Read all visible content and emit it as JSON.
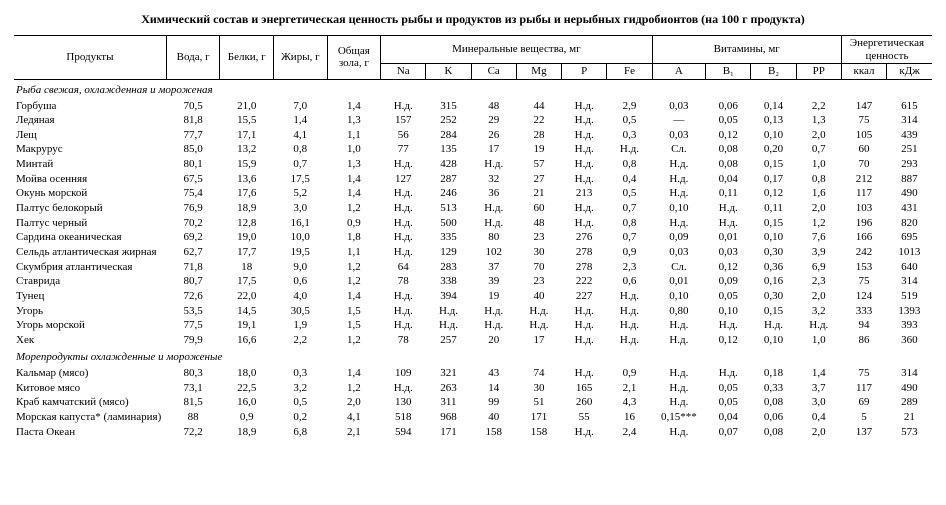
{
  "title": "Химический состав и энергетическая ценность рыбы и продуктов из рыбы и нерыбных гидробионтов (на 100 г продукта)",
  "header": {
    "products": "Продукты",
    "water": "Вода, г",
    "protein": "Белки, г",
    "fat": "Жиры, г",
    "ash": "Общая зола, г",
    "minerals_group": "Минеральные вещества, мг",
    "vitamins_group": "Витамины, мг",
    "energy_group": "Энергетическая ценность",
    "Na": "Na",
    "K": "K",
    "Ca": "Ca",
    "Mg": "Mg",
    "P": "P",
    "Fe": "Fe",
    "A": "A",
    "B1": "B₁",
    "B2": "B₂",
    "PP": "PP",
    "kcal": "ккал",
    "kJ": "кДж"
  },
  "sections": [
    {
      "title": "Рыба свежая, охлажденная и мороженая",
      "rows": [
        {
          "name": "Горбуша",
          "water": "70,5",
          "protein": "21,0",
          "fat": "7,0",
          "ash": "1,4",
          "Na": "Н.д.",
          "K": "315",
          "Ca": "48",
          "Mg": "44",
          "P": "Н.д.",
          "Fe": "2,9",
          "A": "0,03",
          "B1": "0,06",
          "B2": "0,14",
          "PP": "2,2",
          "kcal": "147",
          "kJ": "615"
        },
        {
          "name": "Ледяная",
          "water": "81,8",
          "protein": "15,5",
          "fat": "1,4",
          "ash": "1,3",
          "Na": "157",
          "K": "252",
          "Ca": "29",
          "Mg": "22",
          "P": "Н.д.",
          "Fe": "0,5",
          "A": "—",
          "B1": "0,05",
          "B2": "0,13",
          "PP": "1,3",
          "kcal": "75",
          "kJ": "314"
        },
        {
          "name": "Лещ",
          "water": "77,7",
          "protein": "17,1",
          "fat": "4,1",
          "ash": "1,1",
          "Na": "56",
          "K": "284",
          "Ca": "26",
          "Mg": "28",
          "P": "Н.д.",
          "Fe": "0,3",
          "A": "0,03",
          "B1": "0,12",
          "B2": "0,10",
          "PP": "2,0",
          "kcal": "105",
          "kJ": "439"
        },
        {
          "name": "Макрурус",
          "water": "85,0",
          "protein": "13,2",
          "fat": "0,8",
          "ash": "1,0",
          "Na": "77",
          "K": "135",
          "Ca": "17",
          "Mg": "19",
          "P": "Н.д.",
          "Fe": "Н.д.",
          "A": "Сл.",
          "B1": "0,08",
          "B2": "0,20",
          "PP": "0,7",
          "kcal": "60",
          "kJ": "251"
        },
        {
          "name": "Минтай",
          "water": "80,1",
          "protein": "15,9",
          "fat": "0,7",
          "ash": "1,3",
          "Na": "Н.д.",
          "K": "428",
          "Ca": "Н.д.",
          "Mg": "57",
          "P": "Н.д.",
          "Fe": "0,8",
          "A": "Н.д.",
          "B1": "0,08",
          "B2": "0,15",
          "PP": "1,0",
          "kcal": "70",
          "kJ": "293"
        },
        {
          "name": "Мойва осенняя",
          "water": "67,5",
          "protein": "13,6",
          "fat": "17,5",
          "ash": "1,4",
          "Na": "127",
          "K": "287",
          "Ca": "32",
          "Mg": "27",
          "P": "Н.д.",
          "Fe": "0,4",
          "A": "Н.д.",
          "B1": "0,04",
          "B2": "0,17",
          "PP": "0,8",
          "kcal": "212",
          "kJ": "887"
        },
        {
          "name": "Окунь морской",
          "water": "75,4",
          "protein": "17,6",
          "fat": "5,2",
          "ash": "1,4",
          "Na": "Н.д.",
          "K": "246",
          "Ca": "36",
          "Mg": "21",
          "P": "213",
          "Fe": "0,5",
          "A": "Н.д.",
          "B1": "0,11",
          "B2": "0,12",
          "PP": "1,6",
          "kcal": "117",
          "kJ": "490"
        },
        {
          "name": "Палтус белокорый",
          "water": "76,9",
          "protein": "18,9",
          "fat": "3,0",
          "ash": "1,2",
          "Na": "Н.д.",
          "K": "513",
          "Ca": "Н.д.",
          "Mg": "60",
          "P": "Н.д.",
          "Fe": "0,7",
          "A": "0,10",
          "B1": "Н.д.",
          "B2": "0,11",
          "PP": "2,0",
          "kcal": "103",
          "kJ": "431"
        },
        {
          "name": "Палтус черный",
          "water": "70,2",
          "protein": "12,8",
          "fat": "16,1",
          "ash": "0,9",
          "Na": "Н.д.",
          "K": "500",
          "Ca": "Н.д.",
          "Mg": "48",
          "P": "Н.д.",
          "Fe": "0,8",
          "A": "Н.д.",
          "B1": "Н.д.",
          "B2": "0,15",
          "PP": "1,2",
          "kcal": "196",
          "kJ": "820"
        },
        {
          "name": "Сардина океаническая",
          "water": "69,2",
          "protein": "19,0",
          "fat": "10,0",
          "ash": "1,8",
          "Na": "Н.д.",
          "K": "335",
          "Ca": "80",
          "Mg": "23",
          "P": "276",
          "Fe": "0,7",
          "A": "0,09",
          "B1": "0,01",
          "B2": "0,10",
          "PP": "7,6",
          "kcal": "166",
          "kJ": "695"
        },
        {
          "name": "Сельдь атлантическая жирная",
          "water": "62,7",
          "protein": "17,7",
          "fat": "19,5",
          "ash": "1,1",
          "Na": "Н.д.",
          "K": "129",
          "Ca": "102",
          "Mg": "30",
          "P": "278",
          "Fe": "0,9",
          "A": "0,03",
          "B1": "0,03",
          "B2": "0,30",
          "PP": "3,9",
          "kcal": "242",
          "kJ": "1013"
        },
        {
          "name": "Скумбрия атлантическая",
          "water": "71,8",
          "protein": "18",
          "fat": "9,0",
          "ash": "1,2",
          "Na": "64",
          "K": "283",
          "Ca": "37",
          "Mg": "70",
          "P": "278",
          "Fe": "2,3",
          "A": "Сл.",
          "B1": "0,12",
          "B2": "0,36",
          "PP": "6,9",
          "kcal": "153",
          "kJ": "640"
        },
        {
          "name": "Ставрида",
          "water": "80,7",
          "protein": "17,5",
          "fat": "0,6",
          "ash": "1,2",
          "Na": "78",
          "K": "338",
          "Ca": "39",
          "Mg": "23",
          "P": "222",
          "Fe": "0,6",
          "A": "0,01",
          "B1": "0,09",
          "B2": "0,16",
          "PP": "2,3",
          "kcal": "75",
          "kJ": "314"
        },
        {
          "name": "Тунец",
          "water": "72,6",
          "protein": "22,0",
          "fat": "4,0",
          "ash": "1,4",
          "Na": "Н.д.",
          "K": "394",
          "Ca": "19",
          "Mg": "40",
          "P": "227",
          "Fe": "Н.д.",
          "A": "0,10",
          "B1": "0,05",
          "B2": "0,30",
          "PP": "2,0",
          "kcal": "124",
          "kJ": "519"
        },
        {
          "name": "Угорь",
          "water": "53,5",
          "protein": "14,5",
          "fat": "30,5",
          "ash": "1,5",
          "Na": "Н.д.",
          "K": "Н.д.",
          "Ca": "Н.д.",
          "Mg": "Н.д.",
          "P": "Н.д.",
          "Fe": "Н.д.",
          "A": "0,80",
          "B1": "0,10",
          "B2": "0,15",
          "PP": "3,2",
          "kcal": "333",
          "kJ": "1393"
        },
        {
          "name": "Угорь морской",
          "water": "77,5",
          "protein": "19,1",
          "fat": "1,9",
          "ash": "1,5",
          "Na": "Н.д.",
          "K": "Н.д.",
          "Ca": "Н.д.",
          "Mg": "Н.д.",
          "P": "Н.д.",
          "Fe": "Н.д.",
          "A": "Н.д.",
          "B1": "Н.д.",
          "B2": "Н.д.",
          "PP": "Н.д.",
          "kcal": "94",
          "kJ": "393"
        },
        {
          "name": "Хек",
          "water": "79,9",
          "protein": "16,6",
          "fat": "2,2",
          "ash": "1,2",
          "Na": "78",
          "K": "257",
          "Ca": "20",
          "Mg": "17",
          "P": "Н.д.",
          "Fe": "Н.д.",
          "A": "Н.д.",
          "B1": "0,12",
          "B2": "0,10",
          "PP": "1,0",
          "kcal": "86",
          "kJ": "360"
        }
      ]
    },
    {
      "title": "Морепродукты охлажденные и мороженые",
      "rows": [
        {
          "name": "Кальмар (мясо)",
          "water": "80,3",
          "protein": "18,0",
          "fat": "0,3",
          "ash": "1,4",
          "Na": "109",
          "K": "321",
          "Ca": "43",
          "Mg": "74",
          "P": "Н.д.",
          "Fe": "0,9",
          "A": "Н.д.",
          "B1": "Н.д.",
          "B2": "0,18",
          "PP": "1,4",
          "kcal": "75",
          "kJ": "314"
        },
        {
          "name": "Китовое мясо",
          "water": "73,1",
          "protein": "22,5",
          "fat": "3,2",
          "ash": "1,2",
          "Na": "Н.д.",
          "K": "263",
          "Ca": "14",
          "Mg": "30",
          "P": "165",
          "Fe": "2,1",
          "A": "Н.д.",
          "B1": "0,05",
          "B2": "0,33",
          "PP": "3,7",
          "kcal": "117",
          "kJ": "490"
        },
        {
          "name": "Краб камчатский (мясо)",
          "water": "81,5",
          "protein": "16,0",
          "fat": "0,5",
          "ash": "2,0",
          "Na": "130",
          "K": "311",
          "Ca": "99",
          "Mg": "51",
          "P": "260",
          "Fe": "4,3",
          "A": "Н.д.",
          "B1": "0,05",
          "B2": "0,08",
          "PP": "3,0",
          "kcal": "69",
          "kJ": "289"
        },
        {
          "name": "Морская капуста* (ламинария)",
          "water": "88",
          "protein": "0,9",
          "fat": "0,2",
          "ash": "4,1",
          "Na": "518",
          "K": "968",
          "Ca": "40",
          "Mg": "171",
          "P": "55",
          "Fe": "16",
          "A": "0,15***",
          "B1": "0,04",
          "B2": "0,06",
          "PP": "0,4",
          "kcal": "5",
          "kJ": "21"
        },
        {
          "name": "Паста Океан",
          "water": "72,2",
          "protein": "18,9",
          "fat": "6,8",
          "ash": "2,1",
          "Na": "594",
          "K": "171",
          "Ca": "158",
          "Mg": "158",
          "P": "Н.д.",
          "Fe": "2,4",
          "A": "Н.д.",
          "B1": "0,07",
          "B2": "0,08",
          "PP": "2,0",
          "kcal": "137",
          "kJ": "573"
        }
      ]
    }
  ]
}
